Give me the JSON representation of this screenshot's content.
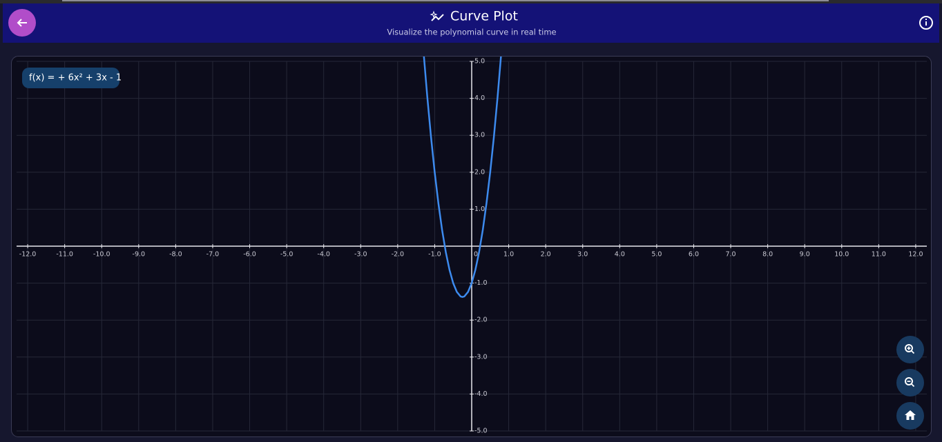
{
  "header": {
    "title": "Curve Plot",
    "subtitle": "Visualize the polynomial curve in real time"
  },
  "chart_data": {
    "type": "line",
    "annotation": "f(x) = + 6x² + 3x - 1",
    "x": [
      -1.3,
      -1.2,
      -1.1,
      -1.0,
      -0.9,
      -0.8,
      -0.7,
      -0.6,
      -0.5,
      -0.4,
      -0.3,
      -0.25,
      -0.2,
      -0.1,
      0,
      0.1,
      0.2,
      0.3,
      0.4,
      0.5,
      0.6,
      0.7,
      0.8
    ],
    "series": [
      {
        "color": "#3d8bef",
        "values": [
          5.24,
          4.04,
          2.96,
          2,
          1.16,
          0.44,
          -0.16,
          -0.64,
          -1,
          -1.24,
          -1.36,
          -1.375,
          -1.36,
          -1.24,
          -1,
          -0.64,
          -0.16,
          0.44,
          1.16,
          2,
          2.96,
          4.04,
          5.24
        ]
      }
    ],
    "xlim": [
      -12.3,
      12.3
    ],
    "ylim": [
      -5,
      5
    ],
    "grid": true,
    "xticks": [
      {
        "value": -12,
        "label": "-12.0"
      },
      {
        "value": -11,
        "label": "-11.0"
      },
      {
        "value": -10,
        "label": "-10.0"
      },
      {
        "value": -9,
        "label": "-9.0"
      },
      {
        "value": -8,
        "label": "-8.0"
      },
      {
        "value": -7,
        "label": "-7.0"
      },
      {
        "value": -6,
        "label": "-6.0"
      },
      {
        "value": -5,
        "label": "-5.0"
      },
      {
        "value": -4,
        "label": "-4.0"
      },
      {
        "value": -3,
        "label": "-3.0"
      },
      {
        "value": -2,
        "label": "-2.0"
      },
      {
        "value": -1,
        "label": "-1.0"
      },
      0,
      {
        "value": 1,
        "label": "1.0"
      },
      {
        "value": 2,
        "label": "2.0"
      },
      {
        "value": 3,
        "label": "3.0"
      },
      {
        "value": 4,
        "label": "4.0"
      },
      {
        "value": 5,
        "label": "5.0"
      },
      {
        "value": 6,
        "label": "6.0"
      },
      {
        "value": 7,
        "label": "7.0"
      },
      {
        "value": 8,
        "label": "8.0"
      },
      {
        "value": 9,
        "label": "9.0"
      },
      {
        "value": 10,
        "label": "10.0"
      },
      {
        "value": 11,
        "label": "11.0"
      },
      {
        "value": 12,
        "label": "12.0"
      }
    ],
    "yticks": [
      {
        "value": 5,
        "label": "5.0"
      },
      {
        "value": 4,
        "label": "4.0"
      },
      {
        "value": 3,
        "label": "3.0"
      },
      {
        "value": 2,
        "label": "2.0"
      },
      {
        "value": 1,
        "label": "1.0"
      },
      {
        "value": -1,
        "label": "-1.0"
      },
      {
        "value": -2,
        "label": "-2.0"
      },
      {
        "value": -3,
        "label": "-3.0"
      },
      {
        "value": -4,
        "label": "-4.0"
      },
      {
        "value": -5,
        "label": "-5.0"
      }
    ]
  }
}
